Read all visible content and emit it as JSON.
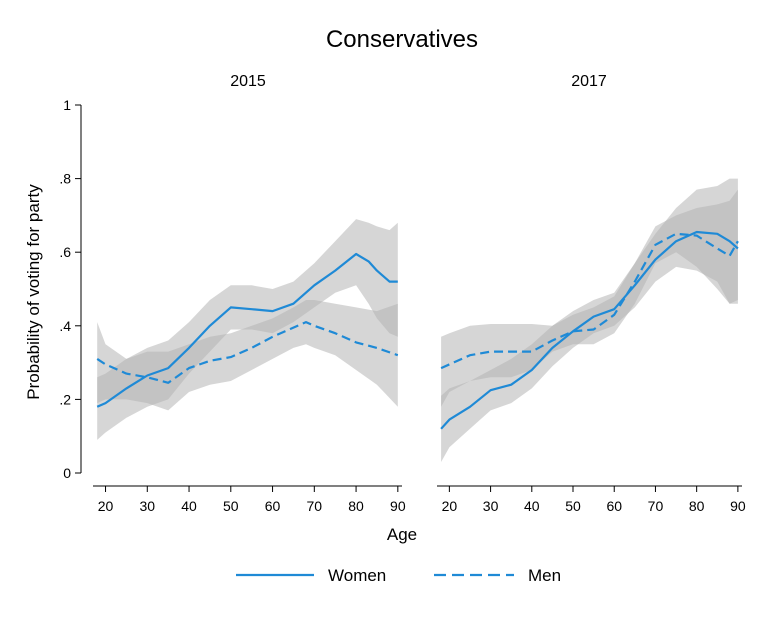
{
  "chart_data": {
    "type": "line",
    "title": "Conservatives",
    "xlabel": "Age",
    "ylabel": "Probability of voting for party",
    "xlim": [
      17,
      91
    ],
    "ylim": [
      0,
      1
    ],
    "x_ticks": [
      20,
      30,
      40,
      50,
      60,
      70,
      80,
      90
    ],
    "y_ticks": [
      {
        "value": 0,
        "label": "0"
      },
      {
        "value": 0.2,
        "label": ".2"
      },
      {
        "value": 0.4,
        "label": ".4"
      },
      {
        "value": 0.6,
        "label": ".6"
      },
      {
        "value": 0.8,
        "label": ".8"
      },
      {
        "value": 1,
        "label": "1"
      }
    ],
    "grid": false,
    "legend_position": "bottom",
    "colors": {
      "line": "#1f8ad6",
      "band": "#b4b4b4"
    },
    "legend": [
      {
        "label": "Women",
        "style": "solid"
      },
      {
        "label": "Men",
        "style": "dashed"
      }
    ],
    "panels": [
      {
        "title": "2015",
        "series": [
          {
            "name": "Women",
            "style": "solid",
            "x": [
              18,
              20,
              25,
              30,
              35,
              40,
              45,
              50,
              55,
              60,
              65,
              70,
              75,
              80,
              83,
              85,
              88,
              90
            ],
            "y": [
              0.18,
              0.19,
              0.23,
              0.265,
              0.285,
              0.34,
              0.4,
              0.45,
              0.445,
              0.44,
              0.46,
              0.51,
              0.55,
              0.595,
              0.575,
              0.55,
              0.52,
              0.52
            ],
            "lower": [
              0.09,
              0.11,
              0.15,
              0.18,
              0.2,
              0.27,
              0.33,
              0.39,
              0.39,
              0.38,
              0.41,
              0.45,
              0.49,
              0.51,
              0.46,
              0.42,
              0.38,
              0.37
            ],
            "upper": [
              0.41,
              0.35,
              0.31,
              0.34,
              0.36,
              0.41,
              0.47,
              0.51,
              0.51,
              0.5,
              0.52,
              0.57,
              0.63,
              0.69,
              0.68,
              0.67,
              0.66,
              0.68
            ]
          },
          {
            "name": "Men",
            "style": "dashed",
            "x": [
              18,
              20,
              25,
              30,
              35,
              40,
              45,
              50,
              55,
              60,
              65,
              68,
              70,
              75,
              80,
              85,
              90
            ],
            "y": [
              0.31,
              0.295,
              0.27,
              0.26,
              0.245,
              0.285,
              0.305,
              0.315,
              0.34,
              0.37,
              0.395,
              0.41,
              0.4,
              0.38,
              0.355,
              0.34,
              0.32
            ],
            "lower": [
              0.19,
              0.2,
              0.2,
              0.19,
              0.17,
              0.22,
              0.24,
              0.25,
              0.28,
              0.31,
              0.34,
              0.35,
              0.34,
              0.32,
              0.28,
              0.24,
              0.18
            ],
            "upper": [
              0.26,
              0.27,
              0.31,
              0.33,
              0.33,
              0.35,
              0.37,
              0.38,
              0.4,
              0.42,
              0.45,
              0.47,
              0.47,
              0.46,
              0.45,
              0.44,
              0.46
            ]
          }
        ]
      },
      {
        "title": "2017",
        "series": [
          {
            "name": "Women",
            "style": "solid",
            "x": [
              18,
              20,
              25,
              30,
              35,
              40,
              45,
              50,
              55,
              60,
              65,
              70,
              75,
              80,
              85,
              88,
              90
            ],
            "y": [
              0.12,
              0.145,
              0.18,
              0.225,
              0.24,
              0.28,
              0.34,
              0.385,
              0.425,
              0.445,
              0.51,
              0.58,
              0.63,
              0.655,
              0.65,
              0.63,
              0.61
            ],
            "lower": [
              0.03,
              0.07,
              0.12,
              0.17,
              0.19,
              0.23,
              0.29,
              0.34,
              0.38,
              0.4,
              0.45,
              0.52,
              0.56,
              0.55,
              0.52,
              0.46,
              0.46
            ],
            "upper": [
              0.21,
              0.23,
              0.25,
              0.28,
              0.31,
              0.35,
              0.4,
              0.44,
              0.47,
              0.49,
              0.57,
              0.65,
              0.72,
              0.77,
              0.78,
              0.8,
              0.8
            ]
          },
          {
            "name": "Men",
            "style": "dashed",
            "x": [
              18,
              20,
              25,
              30,
              35,
              40,
              45,
              50,
              55,
              60,
              65,
              70,
              75,
              80,
              85,
              88,
              90
            ],
            "y": [
              0.285,
              0.295,
              0.32,
              0.33,
              0.33,
              0.33,
              0.36,
              0.385,
              0.39,
              0.43,
              0.52,
              0.62,
              0.65,
              0.645,
              0.61,
              0.59,
              0.63
            ],
            "lower": [
              0.18,
              0.22,
              0.25,
              0.26,
              0.26,
              0.28,
              0.33,
              0.35,
              0.35,
              0.38,
              0.46,
              0.57,
              0.6,
              0.56,
              0.5,
              0.46,
              0.47
            ],
            "upper": [
              0.37,
              0.38,
              0.4,
              0.405,
              0.405,
              0.405,
              0.4,
              0.43,
              0.45,
              0.48,
              0.57,
              0.67,
              0.7,
              0.72,
              0.73,
              0.74,
              0.77
            ]
          }
        ]
      }
    ]
  }
}
